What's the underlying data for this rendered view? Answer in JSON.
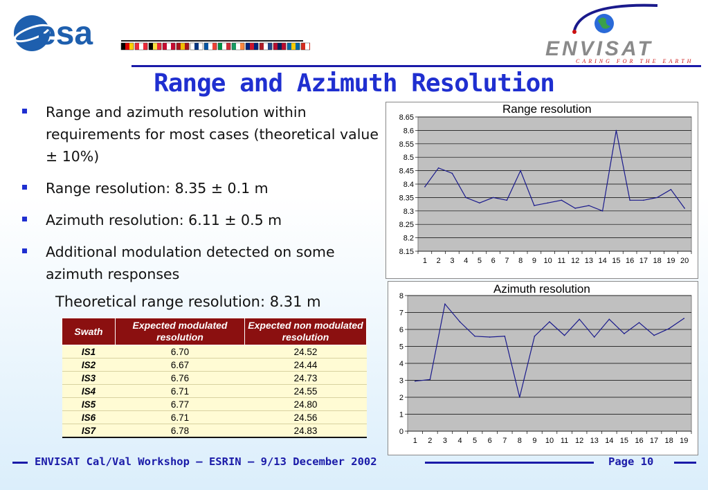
{
  "header": {
    "esa_logo_text": "esa",
    "envisat_logo_text": "ENVISAT",
    "envisat_tagline": "CARING FOR THE EARTH",
    "flag_colors": [
      [
        "#000000",
        "#dd0000",
        "#ffce00"
      ],
      [
        "#ed2939",
        "#ffffff",
        "#ed2939"
      ],
      [
        "#000000",
        "#fae042",
        "#ed2939"
      ],
      [
        "#c60c30",
        "#ffffff",
        "#c60c30"
      ],
      [
        "#aa151b",
        "#f1bf00",
        "#aa151b"
      ],
      [
        "#ffffff",
        "#003580",
        "#ffffff"
      ],
      [
        "#0055a4",
        "#ffffff",
        "#ef4135"
      ],
      [
        "#009246",
        "#ffffff",
        "#ce2b37"
      ],
      [
        "#169b62",
        "#ffffff",
        "#ff883e"
      ],
      [
        "#00247d",
        "#cf142b",
        "#00247d"
      ],
      [
        "#ae1c28",
        "#ffffff",
        "#21468b"
      ],
      [
        "#ba0c2f",
        "#00205b",
        "#ba0c2f"
      ],
      [
        "#006aa7",
        "#fecc00",
        "#006aa7"
      ],
      [
        "#d52b1e",
        "#ffffff",
        "#d52b1e"
      ]
    ]
  },
  "title": "Range and Azimuth Resolution",
  "bullets": [
    "Range and azimuth resolution within requirements for most cases (theoretical value ± 10%)",
    "Range resolution: 8.35 ± 0.1 m",
    "Azimuth resolution: 6.11 ± 0.5 m",
    "Additional modulation detected on some azimuth responses"
  ],
  "theoretical_text": "Theoretical range resolution: 8.31 m",
  "table": {
    "headers": [
      "Swath",
      "Expected modulated resolution",
      "Expected non modulated resolution"
    ],
    "rows": [
      [
        "IS1",
        "6.70",
        "24.52"
      ],
      [
        "IS2",
        "6.67",
        "24.44"
      ],
      [
        "IS3",
        "6.76",
        "24.73"
      ],
      [
        "IS4",
        "6.71",
        "24.55"
      ],
      [
        "IS5",
        "6.77",
        "24.80"
      ],
      [
        "IS6",
        "6.71",
        "24.56"
      ],
      [
        "IS7",
        "6.78",
        "24.83"
      ]
    ]
  },
  "chart_data": [
    {
      "type": "line",
      "title": "Range resolution",
      "x": [
        1,
        2,
        3,
        4,
        5,
        6,
        7,
        8,
        9,
        10,
        11,
        12,
        13,
        14,
        15,
        16,
        17,
        18,
        19,
        20
      ],
      "y": [
        8.39,
        8.46,
        8.44,
        8.35,
        8.33,
        8.35,
        8.34,
        8.45,
        8.32,
        8.33,
        8.34,
        8.31,
        8.32,
        8.3,
        8.6,
        8.34,
        8.34,
        8.35,
        8.38,
        8.31
      ],
      "ylim": [
        8.15,
        8.65
      ],
      "yticks": [
        "8.15",
        "8.2",
        "8.25",
        "8.3",
        "8.35",
        "8.4",
        "8.45",
        "8.5",
        "8.55",
        "8.6",
        "8.65"
      ],
      "grid": true,
      "line_color": "#1a1a8c",
      "plot_bg": "#c0c0c0"
    },
    {
      "type": "line",
      "title": "Azimuth resolution",
      "x": [
        1,
        2,
        3,
        4,
        5,
        6,
        7,
        8,
        9,
        10,
        11,
        12,
        13,
        14,
        15,
        16,
        17,
        18,
        19
      ],
      "y": [
        2.95,
        3.05,
        7.5,
        6.45,
        5.6,
        5.55,
        5.6,
        2.0,
        5.6,
        6.45,
        5.65,
        6.6,
        5.55,
        6.6,
        5.75,
        6.4,
        5.65,
        6.05,
        6.65
      ],
      "ylim": [
        0,
        8
      ],
      "yticks": [
        "0",
        "1",
        "2",
        "3",
        "4",
        "5",
        "6",
        "7",
        "8"
      ],
      "grid": true,
      "line_color": "#1a1a8c",
      "plot_bg": "#c0c0c0"
    }
  ],
  "footer": {
    "text": "ENVISAT Cal/Val Workshop – ESRIN – 9/13 December 2002",
    "page": "Page 10"
  }
}
